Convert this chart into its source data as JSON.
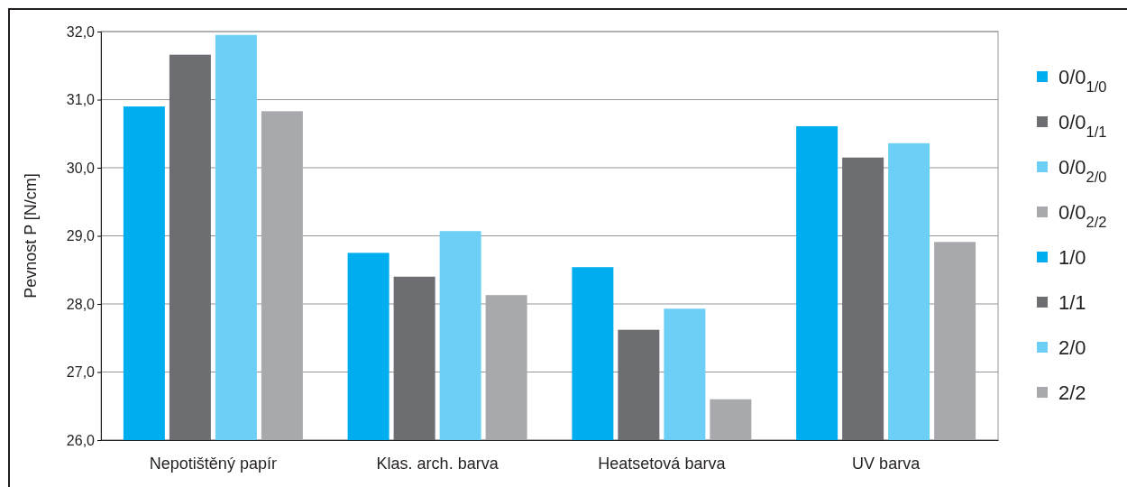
{
  "chart_data": {
    "type": "bar",
    "ylabel": "Pevnost P [N/cm]",
    "categories": [
      "Nepotištěný papír",
      "Klas. arch. barva",
      "Heatsetová barva",
      "UV barva"
    ],
    "series": [
      {
        "name": "0/0$_{1/0}$",
        "color": "#00aeef",
        "values": [
          30.9,
          null,
          null,
          null
        ]
      },
      {
        "name": "0/0$_{1/1}$",
        "color": "#6d6e71",
        "values": [
          31.66,
          null,
          null,
          null
        ]
      },
      {
        "name": "0/0$_{2/0}$",
        "color": "#6dcff6",
        "values": [
          31.95,
          null,
          null,
          null
        ]
      },
      {
        "name": "0/0$_{2/2}$",
        "color": "#a7a9ac",
        "values": [
          30.83,
          null,
          null,
          null
        ]
      },
      {
        "name": "1/0",
        "color": "#00aeef",
        "values": [
          null,
          28.75,
          28.54,
          30.61
        ]
      },
      {
        "name": "1/1",
        "color": "#6d6e71",
        "values": [
          null,
          28.4,
          27.62,
          30.15
        ]
      },
      {
        "name": "2/0",
        "color": "#6dcff6",
        "values": [
          null,
          29.07,
          27.93,
          30.36
        ]
      },
      {
        "name": "2/2",
        "color": "#a7a9ac",
        "values": [
          null,
          28.13,
          26.6,
          28.91
        ]
      }
    ],
    "ylim": [
      26,
      32
    ],
    "yticks": [
      {
        "value": 26,
        "label": "26,0"
      },
      {
        "value": 27,
        "label": "27,0"
      },
      {
        "value": 28,
        "label": "28,0"
      },
      {
        "value": 29,
        "label": "29,0"
      },
      {
        "value": 30,
        "label": "30,0"
      },
      {
        "value": 31,
        "label": "31,0"
      },
      {
        "value": 32,
        "label": "32,0"
      }
    ],
    "grid": "y",
    "legend": "right"
  }
}
